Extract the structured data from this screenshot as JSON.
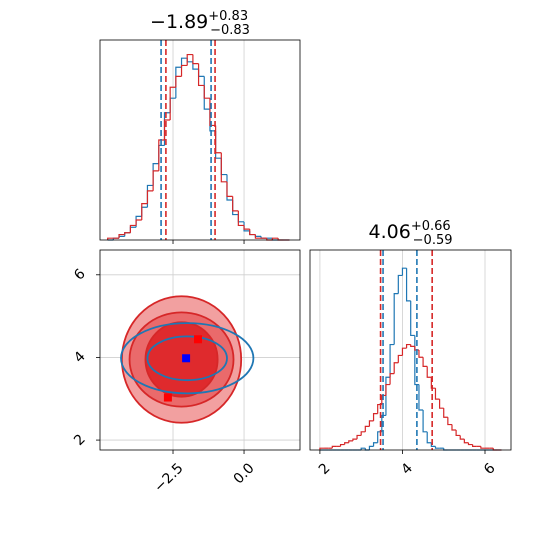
{
  "chart_data": [
    {
      "type": "histogram",
      "title": {
        "value": "−1.89",
        "plus": "+0.83",
        "minus": "−0.83"
      },
      "xlim": [
        -5.07,
        1.97
      ],
      "ylim": [
        0,
        110
      ],
      "xticks": [
        -2.5,
        0.0
      ],
      "xticklabels": false,
      "grid": true,
      "bins": [
        -4.8,
        -4.6,
        -4.4,
        -4.2,
        -4.0,
        -3.8,
        -3.6,
        -3.4,
        -3.2,
        -3.0,
        -2.8,
        -2.6,
        -2.4,
        -2.2,
        -2.0,
        -1.8,
        -1.6,
        -1.4,
        -1.2,
        -1.0,
        -0.8,
        -0.6,
        -0.4,
        -0.2,
        0.0,
        0.2,
        0.4,
        0.6,
        0.8,
        1.0,
        1.2,
        1.4,
        1.6
      ],
      "series": [
        {
          "color": "#1f77b4",
          "values": [
            0,
            1,
            2,
            4,
            7,
            13,
            18,
            30,
            42,
            52,
            70,
            78,
            95,
            100,
            98,
            94,
            90,
            72,
            60,
            45,
            36,
            22,
            14,
            10,
            5,
            3,
            2,
            1,
            1,
            0,
            0,
            0
          ],
          "quantiles": [
            -2.92,
            -1.16
          ]
        },
        {
          "color": "#d62728",
          "values": [
            1,
            1,
            3,
            4,
            8,
            11,
            20,
            27,
            38,
            55,
            66,
            84,
            90,
            96,
            102,
            97,
            85,
            78,
            63,
            48,
            32,
            24,
            16,
            8,
            6,
            3,
            1,
            1,
            0,
            1,
            0,
            0
          ],
          "quantiles": [
            -2.75,
            -1.02
          ]
        }
      ]
    },
    {
      "type": "contour",
      "xlim": [
        -5.07,
        1.97
      ],
      "ylim": [
        1.76,
        6.6
      ],
      "grid": true,
      "xticks": [
        {
          "value": -2.5,
          "label": "−2.5"
        },
        {
          "value": 0.0,
          "label": "0.0"
        }
      ],
      "yticks": [
        2,
        4,
        6
      ],
      "series": [
        {
          "color": "#d62728",
          "center": [
            -2.2,
            3.95
          ],
          "levels": [
            {
              "rx": 2.1,
              "ry": 1.53,
              "fill": "#f2a0a0"
            },
            {
              "rx": 1.83,
              "ry": 1.14,
              "fill": "#ea6a6b"
            },
            {
              "rx": 1.27,
              "ry": 0.9,
              "fill": "#df2a2d"
            }
          ]
        },
        {
          "color": "#1f77b4",
          "center": [
            -2.0,
            3.98
          ],
          "levels": [
            {
              "rx": 2.33,
              "ry": 0.85
            },
            {
              "rx": 1.4,
              "ry": 0.53
            }
          ]
        }
      ],
      "points": [
        {
          "color": "#0000ff",
          "x": -2.04,
          "y": 3.98
        },
        {
          "color": "#ff0000",
          "x": -1.62,
          "y": 4.44
        },
        {
          "color": "#ff0000",
          "x": -2.68,
          "y": 3.03
        }
      ]
    },
    {
      "type": "histogram",
      "title": {
        "value": "4.06",
        "plus": "+0.66",
        "minus": "−0.59"
      },
      "xlim": [
        1.76,
        6.63
      ],
      "ylim": [
        0,
        110
      ],
      "xticks": [
        2,
        4,
        6
      ],
      "xticklabels": true,
      "grid": true,
      "bins": [
        2.0,
        2.1,
        2.2,
        2.3,
        2.4,
        2.5,
        2.6,
        2.7,
        2.8,
        2.9,
        3.0,
        3.1,
        3.2,
        3.3,
        3.4,
        3.5,
        3.6,
        3.7,
        3.8,
        3.9,
        4.0,
        4.1,
        4.2,
        4.3,
        4.4,
        4.5,
        4.6,
        4.7,
        4.8,
        4.9,
        5.0,
        5.1,
        5.2,
        5.3,
        5.4,
        5.5,
        5.6,
        5.7,
        5.8,
        5.9,
        6.0,
        6.1,
        6.2,
        6.3,
        6.4
      ],
      "series": [
        {
          "color": "#1f77b4",
          "values": [
            0,
            0,
            0,
            0,
            0,
            0,
            0,
            0,
            0,
            0,
            1,
            0,
            2,
            4,
            10,
            19,
            40,
            58,
            86,
            96,
            100,
            82,
            63,
            36,
            22,
            10,
            4,
            2,
            1,
            1,
            0,
            0,
            0,
            0,
            0,
            0,
            0,
            0,
            0,
            0,
            0,
            0,
            0,
            0
          ],
          "quantiles": [
            3.53,
            4.35
          ]
        },
        {
          "color": "#d62728",
          "values": [
            1,
            1,
            1,
            2,
            2,
            3,
            4,
            5,
            6,
            8,
            10,
            13,
            16,
            20,
            25,
            30,
            36,
            42,
            48,
            52,
            56,
            58,
            57,
            55,
            51,
            46,
            40,
            34,
            28,
            23,
            18,
            14,
            11,
            8,
            6,
            4,
            3,
            2,
            2,
            1,
            1,
            1,
            0,
            0
          ],
          "quantiles": [
            3.47,
            4.72
          ]
        }
      ]
    }
  ]
}
